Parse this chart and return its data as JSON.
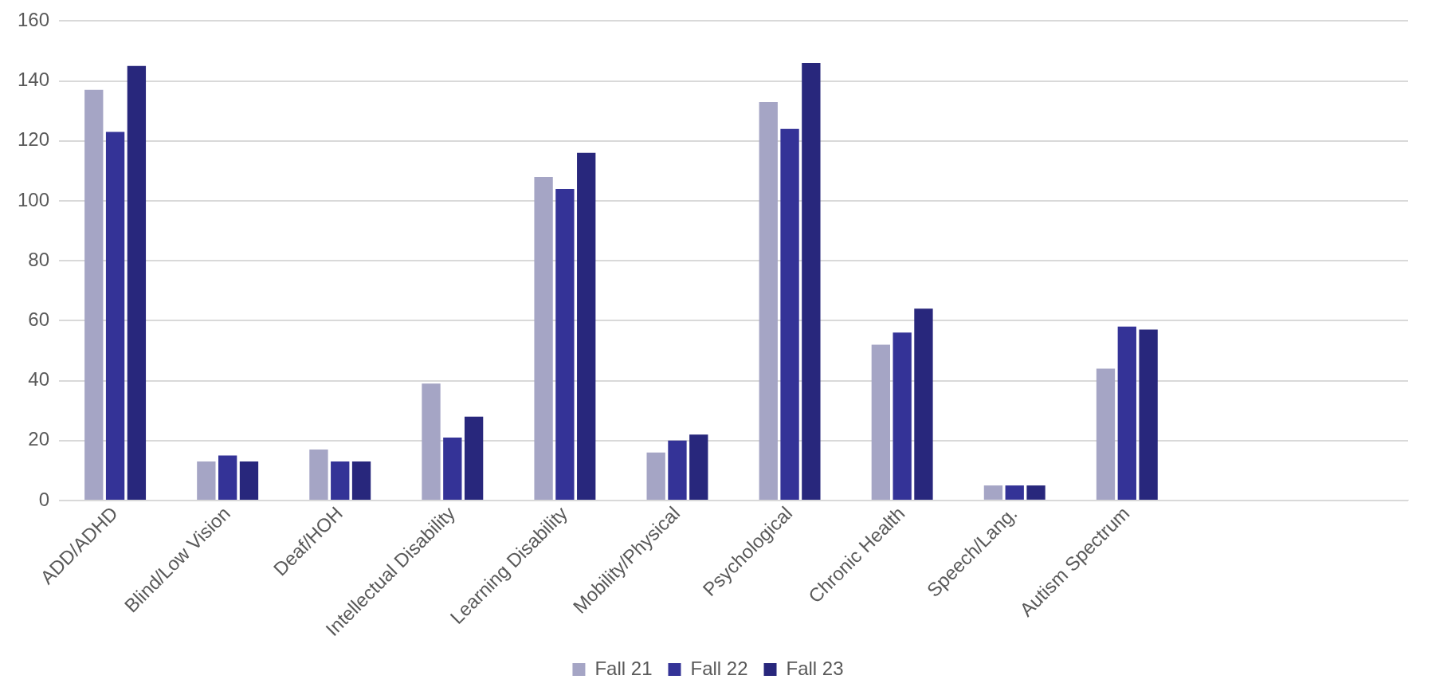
{
  "chart_data": {
    "type": "bar",
    "categories": [
      "ADD/ADHD",
      "Blind/Low Vision",
      "Deaf/HOH",
      "Intellectual Disability",
      "Learning Disability",
      "Mobility/Physical",
      "Psychological",
      "Chronic Health",
      "Speech/Lang.",
      "Autism Spectrum",
      null,
      null
    ],
    "series": [
      {
        "name": "Fall 21",
        "color": "#a5a5c5",
        "values": [
          137,
          13,
          17,
          39,
          108,
          16,
          133,
          52,
          5,
          44,
          null,
          null
        ]
      },
      {
        "name": "Fall 22",
        "color": "#343397",
        "values": [
          123,
          15,
          13,
          21,
          104,
          20,
          124,
          56,
          5,
          58,
          null,
          null
        ]
      },
      {
        "name": "Fall 23",
        "color": "#28277c",
        "values": [
          145,
          13,
          13,
          28,
          116,
          22,
          146,
          64,
          5,
          57,
          null,
          null
        ]
      }
    ],
    "ylim": [
      0,
      160
    ],
    "yticks": [
      0,
      20,
      40,
      60,
      80,
      100,
      120,
      140,
      160
    ],
    "grid": "y",
    "legend": "bottom"
  }
}
